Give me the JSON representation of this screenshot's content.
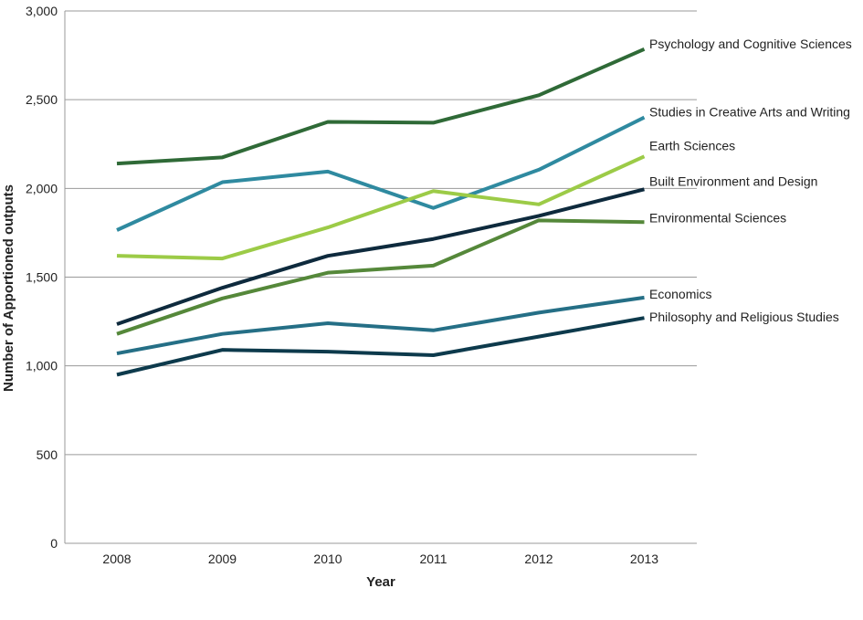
{
  "chart_data": {
    "type": "line",
    "title": "",
    "xlabel": "Year",
    "ylabel": "Number of Apportioned outputs",
    "categories": [
      "2008",
      "2009",
      "2010",
      "2011",
      "2012",
      "2013"
    ],
    "ylim": [
      0,
      3000
    ],
    "yticks": [
      0,
      500,
      1000,
      1500,
      2000,
      2500,
      3000
    ],
    "ytick_labels": [
      "0",
      "500",
      "1,000",
      "1,500",
      "2,000",
      "2,500",
      "3,000"
    ],
    "grid": true,
    "legend": "right-end labels",
    "series": [
      {
        "name": "Psychology and Cognitive Sciences",
        "color": "#2f6a37",
        "values": [
          2140,
          2175,
          2375,
          2370,
          2525,
          2785
        ]
      },
      {
        "name": "Studies in Creative Arts and Writing",
        "color": "#2f8aa0",
        "values": [
          1765,
          2035,
          2095,
          1890,
          2105,
          2400
        ]
      },
      {
        "name": "Earth Sciences",
        "color": "#9ccb47",
        "values": [
          1620,
          1605,
          1780,
          1985,
          1910,
          2180
        ]
      },
      {
        "name": "Built Environment and Design",
        "color": "#0e2a3d",
        "values": [
          1235,
          1440,
          1620,
          1715,
          1845,
          1995
        ]
      },
      {
        "name": "Environmental Sciences",
        "color": "#55883a",
        "values": [
          1180,
          1380,
          1525,
          1565,
          1820,
          1810
        ]
      },
      {
        "name": "Economics",
        "color": "#256f86",
        "values": [
          1070,
          1180,
          1240,
          1200,
          1300,
          1385
        ]
      },
      {
        "name": "Philosophy and Religious Studies",
        "color": "#0d3a4c",
        "values": [
          950,
          1090,
          1080,
          1060,
          1165,
          1270
        ]
      }
    ]
  }
}
